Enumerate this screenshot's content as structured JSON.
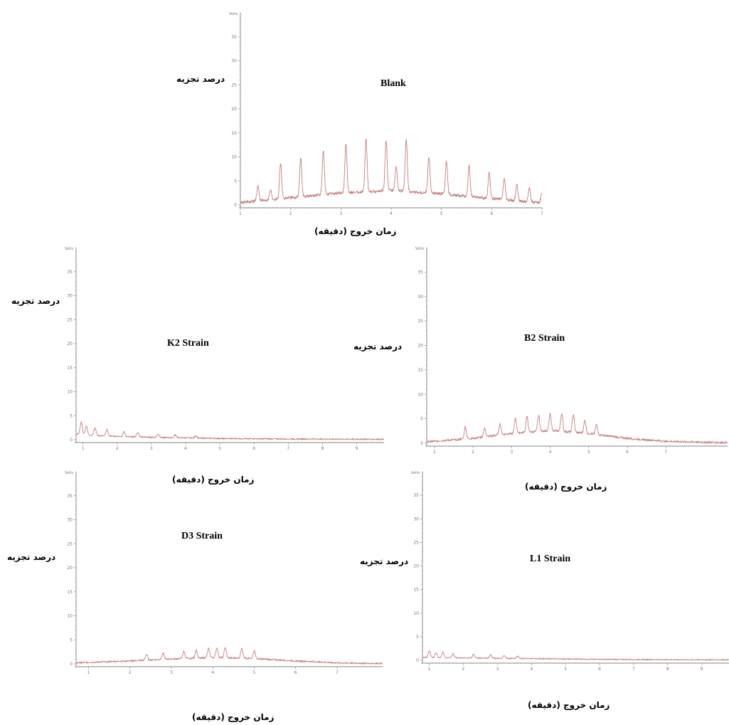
{
  "labels": {
    "ylabel": "درصد تجزیه",
    "xlabel": "زمان خروج (دقیقه)",
    "unit": "Volts"
  },
  "colors": {
    "trace": "#c77f7f",
    "axis": "#8a8a8a",
    "tick_text": "#777777"
  },
  "chart_data": [
    {
      "id": "blank",
      "type": "line",
      "title": "Blank",
      "ylabel": "درصد تجزیه",
      "xlabel": "زمان خروج (دقیقه)",
      "ylim": [
        0,
        40
      ],
      "yticks": [
        0,
        5,
        10,
        15,
        20,
        25,
        30,
        35
      ],
      "xlim": [
        1,
        7
      ],
      "xticks": [
        1,
        2,
        3,
        4,
        5,
        6,
        7
      ],
      "series": [
        {
          "baseline": [
            [
              1,
              0.5
            ],
            [
              2,
              1.5
            ],
            [
              3,
              2.5
            ],
            [
              4,
              3.0
            ],
            [
              5,
              2.3
            ],
            [
              6,
              1.3
            ],
            [
              7,
              0.4
            ]
          ],
          "peaks": [
            [
              1.35,
              3
            ],
            [
              1.6,
              2
            ],
            [
              1.8,
              7.5
            ],
            [
              2.2,
              8
            ],
            [
              2.65,
              9
            ],
            [
              3.1,
              10
            ],
            [
              3.5,
              11
            ],
            [
              3.9,
              10.5
            ],
            [
              4.1,
              5
            ],
            [
              4.3,
              11
            ],
            [
              4.75,
              7.5
            ],
            [
              5.1,
              7
            ],
            [
              5.55,
              6.5
            ],
            [
              5.95,
              5.5
            ],
            [
              6.25,
              4.5
            ],
            [
              6.5,
              3.5
            ],
            [
              6.75,
              3
            ],
            [
              7.0,
              2
            ]
          ],
          "noise": 0.6
        }
      ]
    },
    {
      "id": "k2",
      "type": "line",
      "title": "K2 Strain",
      "ylabel": "درصد تجزیه",
      "xlabel": "زمان خروج (دقیقه)",
      "ylim": [
        0,
        40
      ],
      "yticks": [
        0,
        5,
        10,
        15,
        20,
        25,
        30,
        35
      ],
      "xlim": [
        0.8,
        9.8
      ],
      "xticks": [
        1,
        2,
        3,
        4,
        5,
        6,
        7,
        8,
        9
      ],
      "series": [
        {
          "baseline": [
            [
              0.8,
              1.2
            ],
            [
              1.5,
              0.8
            ],
            [
              3,
              0.5
            ],
            [
              5,
              0.25
            ],
            [
              7,
              0.15
            ],
            [
              9.8,
              0.1
            ]
          ],
          "peaks": [
            [
              0.95,
              2.6
            ],
            [
              1.1,
              1.8
            ],
            [
              1.35,
              1.6
            ],
            [
              1.7,
              1.4
            ],
            [
              2.2,
              1.0
            ],
            [
              2.6,
              0.9
            ],
            [
              3.2,
              0.7
            ],
            [
              3.7,
              0.6
            ],
            [
              4.3,
              0.5
            ]
          ],
          "noise": 0.25
        }
      ]
    },
    {
      "id": "b2",
      "type": "line",
      "title": "B2 Strain",
      "ylabel": "درصد تجزیه",
      "xlabel": "زمان خروج (دقیقه)",
      "ylim": [
        0,
        40
      ],
      "yticks": [
        0,
        5,
        10,
        15,
        20,
        25,
        30,
        35
      ],
      "xlim": [
        0.8,
        8.6
      ],
      "xticks": [
        1,
        2,
        3,
        4,
        5,
        6,
        7
      ],
      "series": [
        {
          "baseline": [
            [
              0.8,
              0.3
            ],
            [
              2,
              1.0
            ],
            [
              3,
              2.0
            ],
            [
              4,
              2.6
            ],
            [
              5,
              2.0
            ],
            [
              6,
              1.0
            ],
            [
              7,
              0.4
            ],
            [
              8.6,
              0.1
            ]
          ],
          "peaks": [
            [
              1.8,
              2.5
            ],
            [
              2.3,
              1.8
            ],
            [
              2.7,
              2.3
            ],
            [
              3.1,
              3.0
            ],
            [
              3.4,
              3.2
            ],
            [
              3.7,
              3.3
            ],
            [
              4.0,
              3.4
            ],
            [
              4.3,
              3.7
            ],
            [
              4.6,
              3.6
            ],
            [
              4.9,
              2.6
            ],
            [
              5.2,
              2.0
            ]
          ],
          "noise": 0.4
        }
      ]
    },
    {
      "id": "d3",
      "type": "line",
      "title": "D3 Strain",
      "ylabel": "درصد تجزیه",
      "xlabel": "زمان خروج (دقیقه)",
      "ylim": [
        0,
        40
      ],
      "yticks": [
        0,
        5,
        10,
        15,
        20,
        25,
        30,
        35
      ],
      "xlim": [
        0.7,
        8.1
      ],
      "xticks": [
        1,
        2,
        3,
        4,
        5,
        6,
        7
      ],
      "series": [
        {
          "baseline": [
            [
              0.7,
              0.2
            ],
            [
              2,
              0.6
            ],
            [
              3,
              1.0
            ],
            [
              4,
              1.3
            ],
            [
              5,
              1.1
            ],
            [
              6,
              0.6
            ],
            [
              7,
              0.2
            ],
            [
              8.1,
              0.05
            ]
          ],
          "peaks": [
            [
              2.4,
              1.2
            ],
            [
              2.8,
              1.3
            ],
            [
              3.3,
              1.5
            ],
            [
              3.6,
              1.7
            ],
            [
              3.9,
              1.9
            ],
            [
              4.1,
              2.1
            ],
            [
              4.3,
              2.2
            ],
            [
              4.7,
              2.2
            ],
            [
              5.0,
              1.6
            ]
          ],
          "noise": 0.3
        }
      ]
    },
    {
      "id": "l1",
      "type": "line",
      "title": "L1 Strain",
      "ylabel": "درصد تجزیه",
      "xlabel": "زمان خروج (دقیقه)",
      "ylim": [
        0,
        40
      ],
      "yticks": [
        0,
        5,
        10,
        15,
        20,
        25,
        30,
        35
      ],
      "xlim": [
        0.8,
        9.8
      ],
      "xticks": [
        1,
        2,
        3,
        4,
        5,
        6,
        7,
        8,
        9
      ],
      "series": [
        {
          "baseline": [
            [
              0.8,
              0.6
            ],
            [
              2,
              0.5
            ],
            [
              4,
              0.35
            ],
            [
              6,
              0.2
            ],
            [
              8,
              0.12
            ],
            [
              9.8,
              0.1
            ]
          ],
          "peaks": [
            [
              1.0,
              1.4
            ],
            [
              1.2,
              1.1
            ],
            [
              1.4,
              1.2
            ],
            [
              1.7,
              0.9
            ],
            [
              2.3,
              0.8
            ],
            [
              2.8,
              0.7
            ],
            [
              3.2,
              0.6
            ],
            [
              3.6,
              0.5
            ]
          ],
          "noise": 0.2
        }
      ]
    }
  ]
}
